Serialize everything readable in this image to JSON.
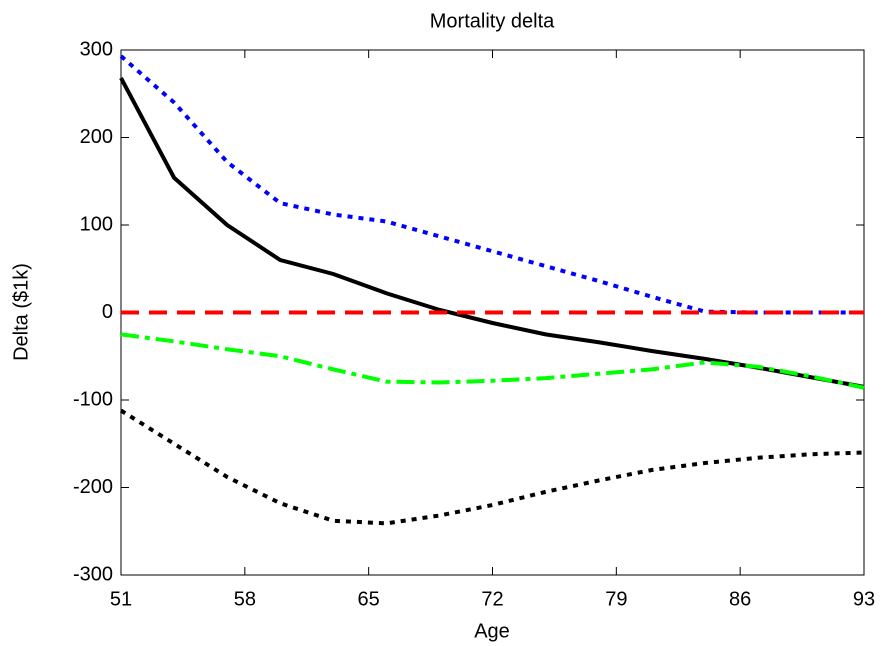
{
  "chart_data": {
    "type": "line",
    "title": "Mortality delta",
    "x_label": "Age",
    "y_label": "Delta ($1k)",
    "x": [
      51,
      54,
      57,
      60,
      63,
      66,
      69,
      72,
      75,
      78,
      81,
      84,
      87,
      90,
      93
    ],
    "series": [
      {
        "color": "#0000ff",
        "dash": "dotted",
        "values": [
          293,
          240,
          172,
          125,
          112,
          104,
          87,
          70,
          53,
          36,
          18,
          1,
          0,
          0,
          0
        ]
      },
      {
        "color": "#000000",
        "dash": "solid",
        "values": [
          268,
          154,
          100,
          60,
          44,
          22,
          3,
          -12,
          -25,
          -34,
          -44,
          -53,
          -63,
          -74,
          -85
        ]
      },
      {
        "color": "#ff0000",
        "dash": "dashed",
        "values": [
          0,
          0,
          0,
          0,
          0,
          0,
          0,
          0,
          0,
          0,
          0,
          0,
          0,
          0,
          0
        ]
      },
      {
        "color": "#00ff00",
        "dash": "dashdot",
        "values": [
          -25,
          -33,
          -42,
          -50,
          -65,
          -79,
          -80,
          -78,
          -75,
          -70,
          -65,
          -57,
          -62,
          -73,
          -86
        ]
      },
      {
        "color": "#000000",
        "dash": "dotted",
        "values": [
          -112,
          -150,
          -188,
          -218,
          -238,
          -241,
          -232,
          -220,
          -205,
          -192,
          -180,
          -172,
          -166,
          -162,
          -160
        ]
      }
    ],
    "xlim": [
      51,
      93
    ],
    "xticks": [
      51,
      58,
      65,
      72,
      79,
      86,
      93
    ],
    "ylim": [
      -300,
      300
    ],
    "yticks": [
      -300,
      -200,
      -100,
      0,
      100,
      200,
      300
    ],
    "grid": false
  }
}
